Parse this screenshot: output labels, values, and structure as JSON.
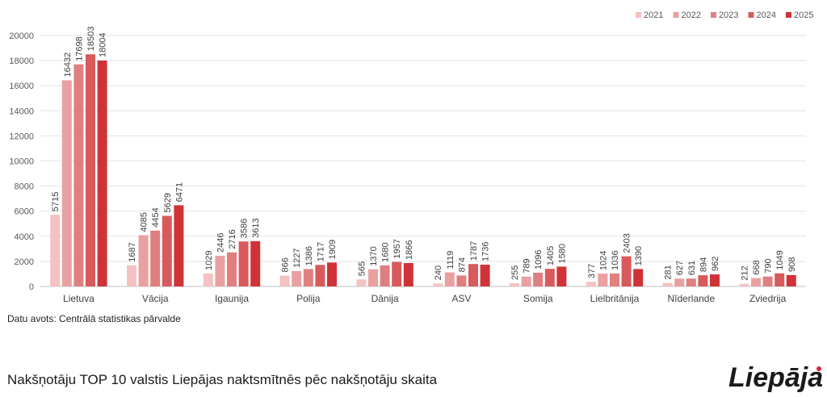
{
  "chart_data": {
    "type": "bar",
    "title": "",
    "xlabel": "",
    "ylabel": "",
    "ylim": [
      0,
      20000
    ],
    "yticks": [
      0,
      2000,
      4000,
      6000,
      8000,
      10000,
      12000,
      14000,
      16000,
      18000,
      20000
    ],
    "grid": true,
    "legend_position": "top-right",
    "categories": [
      "Lietuva",
      "Vācija",
      "Igaunija",
      "Polija",
      "Dānija",
      "ASV",
      "Somija",
      "Lielbritānija",
      "Nīderlande",
      "Zviedrija"
    ],
    "series": [
      {
        "name": "2021",
        "color": "#f4c2c2",
        "values": [
          5715,
          1687,
          1029,
          866,
          565,
          240,
          255,
          377,
          281,
          212
        ]
      },
      {
        "name": "2022",
        "color": "#eaa0a0",
        "values": [
          16432,
          4085,
          2446,
          1227,
          1370,
          1119,
          789,
          1024,
          627,
          668
        ]
      },
      {
        "name": "2023",
        "color": "#e07f80",
        "values": [
          17698,
          4454,
          2716,
          1386,
          1680,
          874,
          1096,
          1036,
          631,
          790
        ]
      },
      {
        "name": "2024",
        "color": "#d85a5c",
        "values": [
          18503,
          5629,
          3586,
          1717,
          1957,
          1787,
          1405,
          2403,
          894,
          1049
        ]
      },
      {
        "name": "2025",
        "color": "#cf3338",
        "values": [
          18004,
          6471,
          3613,
          1909,
          1866,
          1736,
          1580,
          1390,
          962,
          908
        ]
      }
    ]
  },
  "source": "Datu avots: Centrālā statistikas pārvalde",
  "footer_title": "Nakšņotāju TOP 10 valstis Liepājas naktsmītnēs pēc nakšņotāju skaita",
  "logo": {
    "text": "Liepāja",
    "dot_color": "#d7263d"
  }
}
